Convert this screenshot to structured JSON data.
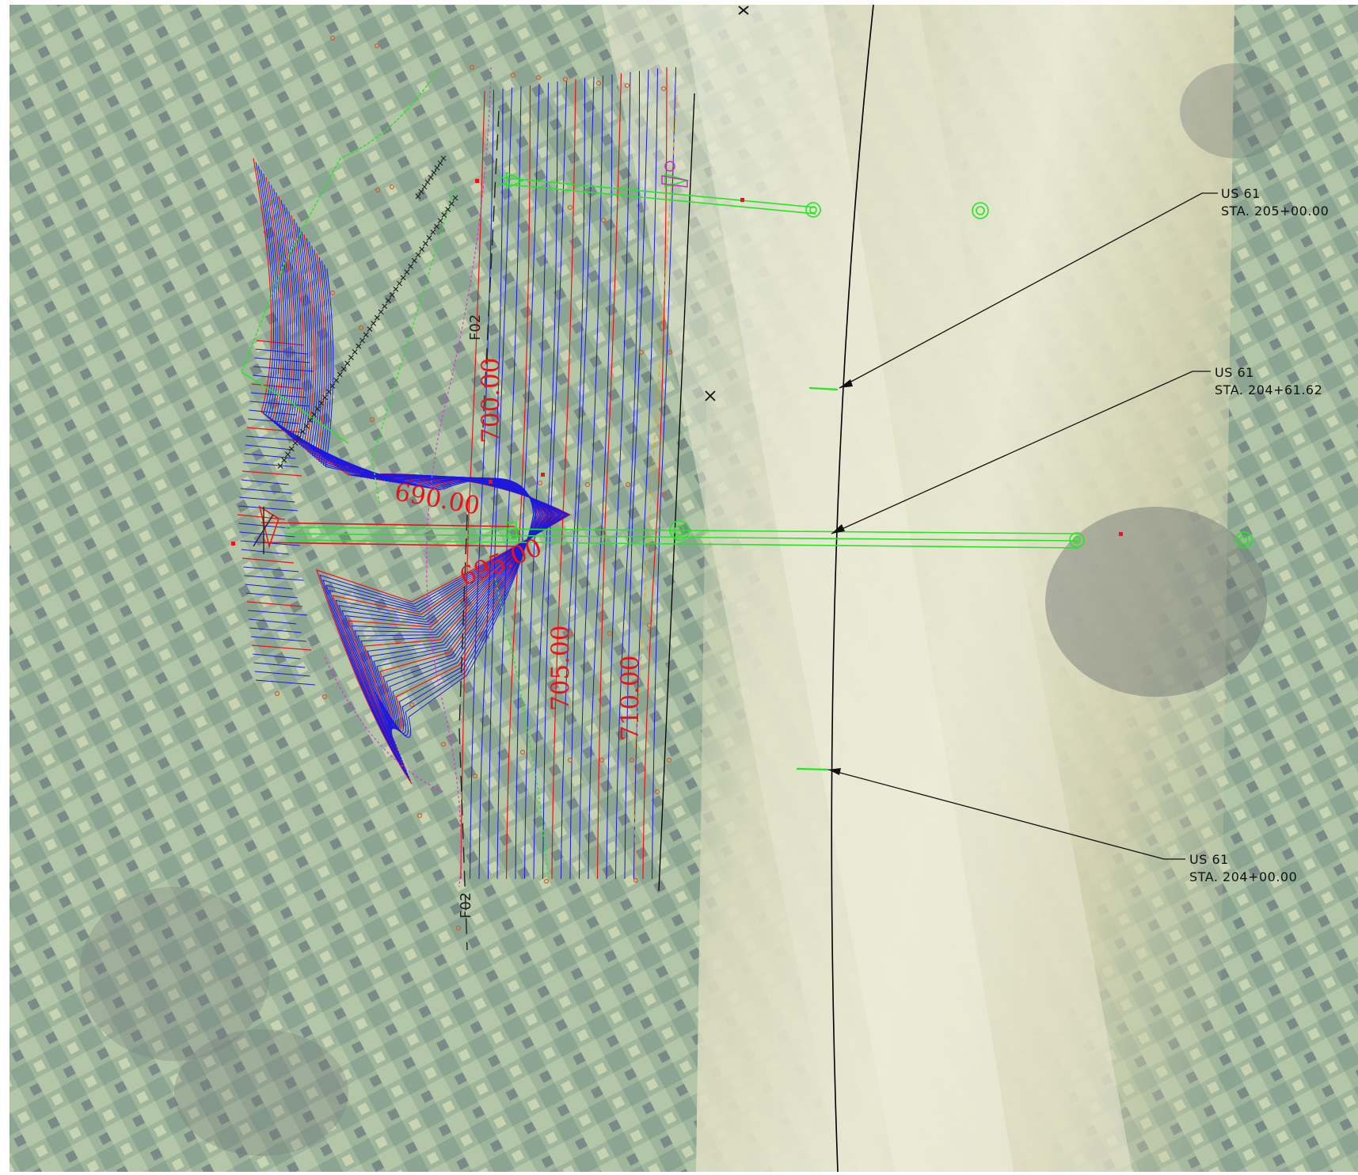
{
  "map": {
    "contour_labels": [
      "700.00",
      "690.00",
      "695.00",
      "705.00",
      "710.00"
    ],
    "alignment_labels": [
      "F02",
      "F02"
    ],
    "callouts": [
      {
        "line1": "US 61",
        "line2": "STA. 205+00.00"
      },
      {
        "line1": "US 61",
        "line2": "STA. 204+61.62"
      },
      {
        "line1": "US 61",
        "line2": "STA. 204+00.00"
      }
    ],
    "colors": {
      "contour_major": "#e8141a",
      "contour_minor": "#1a1ae0",
      "pipe": "#22e822",
      "grading_limit": "#e030e0",
      "station_line": "#000000",
      "survey_point": "#d0602a"
    }
  }
}
